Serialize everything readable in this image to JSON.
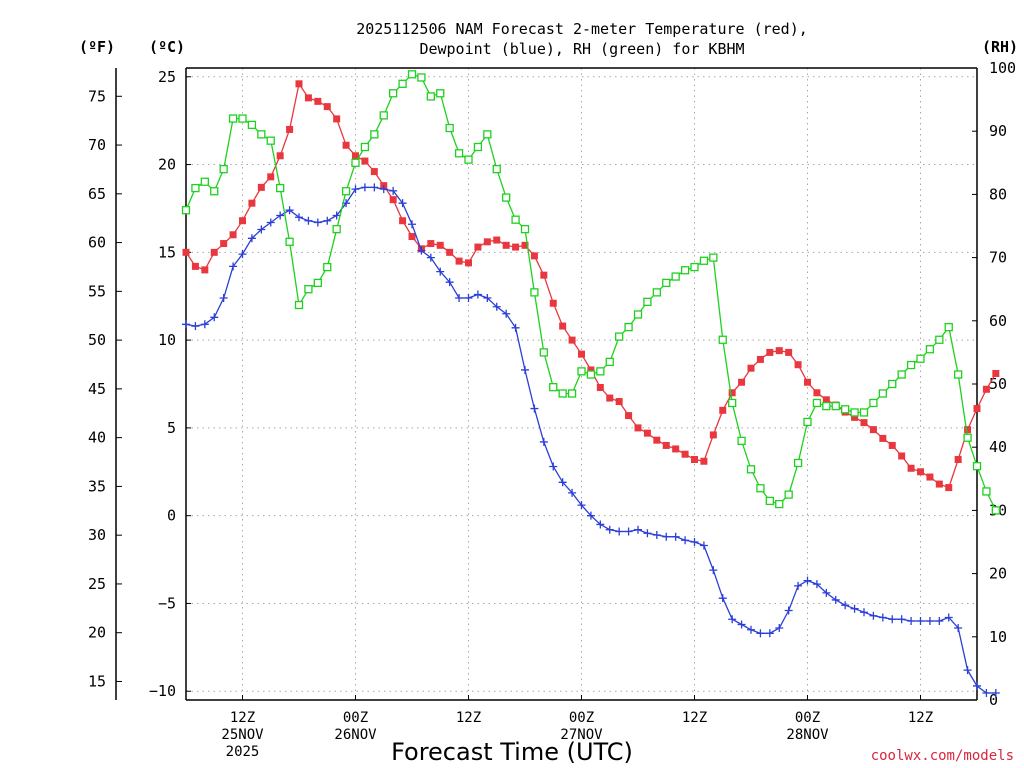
{
  "title": {
    "line1": "2025112506 NAM Forecast 2-meter Temperature (red),",
    "line2": "Dewpoint (blue), RH (green) for KBHM"
  },
  "units": {
    "fahrenheit": "(ºF)",
    "celsius": "(ºC)",
    "rh": "(RH)"
  },
  "credit": "coolwx.com/models",
  "colors": {
    "temperature": "#e8373f",
    "dewpoint": "#2b3fd8",
    "rh": "#1fd11f",
    "grid": "#a8a8a8"
  },
  "chart_data": {
    "type": "line",
    "title": "2025112506 NAM Forecast 2-meter Temperature (red), Dewpoint (blue), RH (green) for KBHM",
    "xlabel": "Forecast Time (UTC)",
    "x_unit": "hours from 2025-11-25 06Z",
    "x_step_hours": 1,
    "x_range": [
      0,
      84
    ],
    "x_ticks": [
      {
        "hour": 6,
        "lines": [
          "12Z",
          "25NOV",
          "2025"
        ]
      },
      {
        "hour": 18,
        "lines": [
          "00Z",
          "26NOV"
        ]
      },
      {
        "hour": 30,
        "lines": [
          "12Z"
        ]
      },
      {
        "hour": 42,
        "lines": [
          "00Z",
          "27NOV"
        ]
      },
      {
        "hour": 54,
        "lines": [
          "12Z"
        ]
      },
      {
        "hour": 66,
        "lines": [
          "00Z",
          "28NOV"
        ]
      },
      {
        "hour": 78,
        "lines": [
          "12Z"
        ]
      }
    ],
    "y_left_celsius": {
      "range": [
        -10.5,
        25.5
      ],
      "ticks": [
        25,
        20,
        15,
        10,
        5,
        0,
        -5,
        -10
      ]
    },
    "y_left_fahrenheit": {
      "ticks": [
        75,
        70,
        65,
        60,
        55,
        50,
        45,
        40,
        35,
        30,
        25,
        20,
        15
      ]
    },
    "y_right_rh": {
      "range": [
        0,
        100
      ],
      "ticks": [
        100,
        90,
        80,
        70,
        60,
        50,
        40,
        30,
        20,
        10,
        0
      ]
    },
    "grid": true,
    "series": [
      {
        "name": "Temperature",
        "axis": "celsius",
        "marker": "filled-square",
        "values": [
          15.0,
          14.2,
          14.0,
          15.0,
          15.5,
          16.0,
          16.8,
          17.8,
          18.7,
          19.3,
          20.5,
          22.0,
          24.6,
          23.8,
          23.6,
          23.3,
          22.6,
          21.1,
          20.5,
          20.2,
          19.6,
          18.8,
          18.0,
          16.8,
          15.9,
          15.2,
          15.5,
          15.4,
          15.0,
          14.5,
          14.4,
          15.3,
          15.6,
          15.7,
          15.4,
          15.3,
          15.4,
          14.8,
          13.7,
          12.1,
          10.8,
          10.0,
          9.2,
          8.3,
          7.3,
          6.7,
          6.5,
          5.7,
          5.0,
          4.7,
          4.3,
          4.0,
          3.8,
          3.5,
          3.2,
          3.1,
          4.6,
          6.0,
          7.0,
          7.6,
          8.4,
          8.9,
          9.3,
          9.4,
          9.3,
          8.6,
          7.6,
          7.0,
          6.6,
          6.3,
          5.9,
          5.6,
          5.3,
          4.9,
          4.4,
          4.0,
          3.4,
          2.7,
          2.5,
          2.2,
          1.8,
          1.6,
          3.2,
          4.9,
          6.1,
          7.2,
          8.1
        ]
      },
      {
        "name": "Dewpoint",
        "axis": "celsius",
        "marker": "plus",
        "values": [
          10.9,
          10.8,
          10.9,
          11.3,
          12.4,
          14.2,
          14.9,
          15.8,
          16.3,
          16.7,
          17.1,
          17.4,
          17.0,
          16.8,
          16.7,
          16.8,
          17.1,
          17.8,
          18.6,
          18.7,
          18.7,
          18.6,
          18.5,
          17.8,
          16.6,
          15.1,
          14.7,
          13.9,
          13.3,
          12.4,
          12.4,
          12.6,
          12.4,
          11.9,
          11.5,
          10.7,
          8.3,
          6.1,
          4.2,
          2.8,
          1.9,
          1.3,
          0.6,
          0.0,
          -0.5,
          -0.8,
          -0.9,
          -0.9,
          -0.8,
          -1.0,
          -1.1,
          -1.2,
          -1.2,
          -1.4,
          -1.5,
          -1.7,
          -3.1,
          -4.7,
          -5.9,
          -6.2,
          -6.5,
          -6.7,
          -6.7,
          -6.4,
          -5.4,
          -4.0,
          -3.7,
          -3.9,
          -4.4,
          -4.8,
          -5.1,
          -5.3,
          -5.5,
          -5.7,
          -5.8,
          -5.9,
          -5.9,
          -6.0,
          -6.0,
          -6.0,
          -6.0,
          -5.8,
          -6.4,
          -8.8,
          -9.7,
          -10.1,
          -10.1
        ]
      },
      {
        "name": "RH",
        "axis": "rh",
        "marker": "open-square",
        "values": [
          77.5,
          81.0,
          82.0,
          80.5,
          84.0,
          92.0,
          92.0,
          91.0,
          89.5,
          88.5,
          81.0,
          72.5,
          62.5,
          65.0,
          66.0,
          68.5,
          74.5,
          80.5,
          85.0,
          87.5,
          89.5,
          92.5,
          96.0,
          97.5,
          99.0,
          98.5,
          95.5,
          96.0,
          90.5,
          86.5,
          85.5,
          87.5,
          89.5,
          84.0,
          79.5,
          76.0,
          74.5,
          64.5,
          55.0,
          49.5,
          48.5,
          48.5,
          52.0,
          51.5,
          52.0,
          53.5,
          57.5,
          59.0,
          61.0,
          63.0,
          64.5,
          66.0,
          67.0,
          68.0,
          68.5,
          69.5,
          70.0,
          57.0,
          47.0,
          41.0,
          36.5,
          33.5,
          31.5,
          31.0,
          32.5,
          37.5,
          44.0,
          47.0,
          46.5,
          46.5,
          46.0,
          45.5,
          45.5,
          47.0,
          48.5,
          50.0,
          51.5,
          53.0,
          54.0,
          55.5,
          57.0,
          59.0,
          51.5,
          41.5,
          37.0,
          33.0,
          30.0
        ]
      }
    ]
  }
}
